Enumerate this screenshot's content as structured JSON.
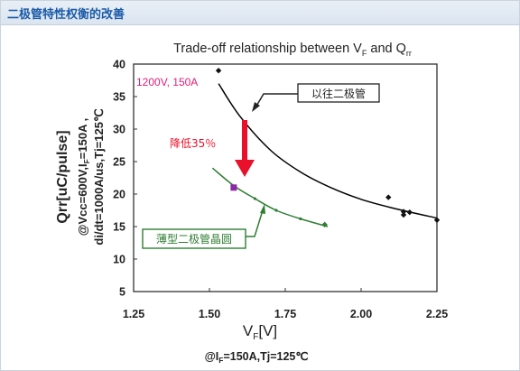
{
  "header": {
    "title": "二极管特性权衡的改善"
  },
  "chart_data": {
    "type": "scatter",
    "title_main": "Trade-off relationship between V",
    "title_sub1": "F",
    "title_mid": " and Q",
    "title_sub2": "rr",
    "xlabel_main": "V",
    "xlabel_sub": "F",
    "xlabel_unit": "[V]",
    "ylabel_main": "Qrr[uC/pulse]",
    "ylabel_cond1_a": "@Vcc=600V,I",
    "ylabel_cond1_sub": "F",
    "ylabel_cond1_b": "=150A ,",
    "ylabel_cond2": "di/dt=1000A/us,Tj=125℃",
    "footnote_a": "@I",
    "footnote_sub": "F",
    "footnote_b": "=150A,Tj=125℃",
    "xlim": [
      1.25,
      2.25
    ],
    "ylim": [
      5,
      40
    ],
    "x_ticks": [
      "1.25",
      "1.50",
      "1.75",
      "2.00",
      "2.25"
    ],
    "y_ticks": [
      "5",
      "10",
      "15",
      "20",
      "25",
      "30",
      "35",
      "40"
    ],
    "rating_label": "1200V, 150A",
    "series": [
      {
        "name": "以往二极管",
        "color": "#000000",
        "points": [
          {
            "x": 1.53,
            "y": 39.0
          },
          {
            "x": 2.09,
            "y": 19.5
          },
          {
            "x": 2.14,
            "y": 17.3
          },
          {
            "x": 2.14,
            "y": 16.8
          },
          {
            "x": 2.16,
            "y": 17.2
          },
          {
            "x": 2.25,
            "y": 16.0
          }
        ],
        "curve": [
          [
            1.53,
            37.0
          ],
          [
            1.6,
            32.0
          ],
          [
            1.7,
            26.8
          ],
          [
            1.8,
            23.4
          ],
          [
            1.9,
            21.0
          ],
          [
            2.0,
            19.2
          ],
          [
            2.1,
            17.9
          ],
          [
            2.25,
            16.3
          ]
        ]
      },
      {
        "name": "薄型二极管晶圆",
        "color": "#2f7d32",
        "points": [
          {
            "x": 1.58,
            "y": 21.0
          },
          {
            "x": 1.88,
            "y": 15.3
          }
        ],
        "curve": [
          [
            1.51,
            24.0
          ],
          [
            1.58,
            21.3
          ],
          [
            1.65,
            19.3
          ],
          [
            1.72,
            17.5
          ],
          [
            1.8,
            16.2
          ],
          [
            1.89,
            15.0
          ]
        ]
      }
    ],
    "annotations": {
      "reduction_label": "降低35％",
      "conventional_label": "以往二极管",
      "thin_label": "薄型二极管晶圆",
      "rating_color": "#e0207a",
      "arrow_color": "#e8102a"
    }
  }
}
